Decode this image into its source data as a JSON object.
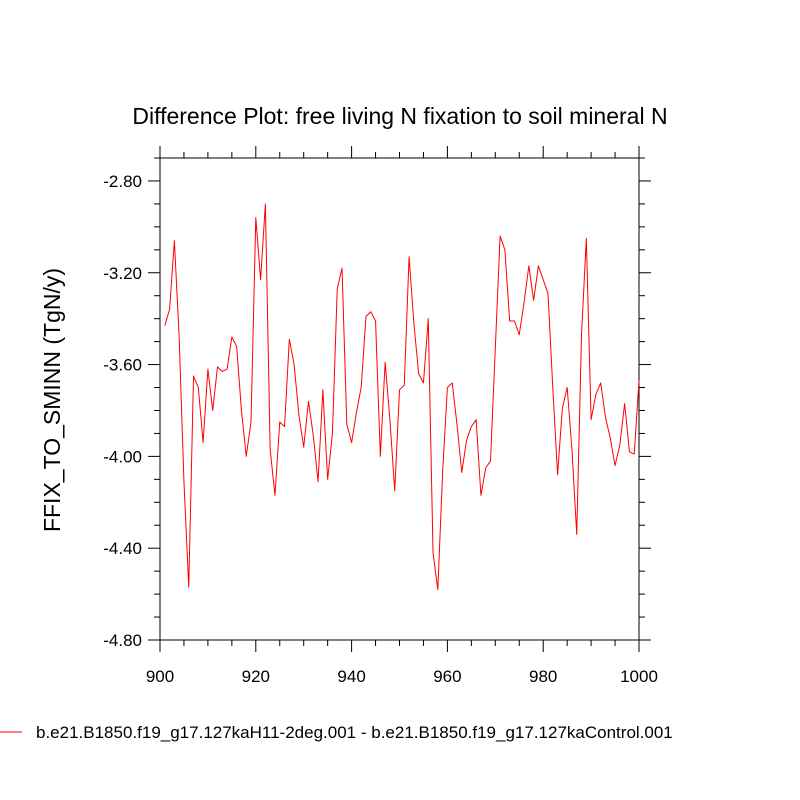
{
  "chart_data": {
    "type": "line",
    "title": "Difference Plot: free living N fixation to soil mineral N",
    "xlabel": "",
    "ylabel": "FFIX_TO_SMINN  (TgN/y)",
    "xlim": [
      900,
      1000
    ],
    "ylim": [
      -4.8,
      -2.7
    ],
    "x_ticks": [
      900,
      920,
      940,
      960,
      980,
      1000
    ],
    "x_tick_labels": [
      "900",
      "920",
      "940",
      "960",
      "980",
      "1000"
    ],
    "y_ticks": [
      -2.8,
      -3.2,
      -3.6,
      -4.0,
      -4.4,
      -4.8
    ],
    "y_tick_labels": [
      "-2.80",
      "-3.20",
      "-3.60",
      "-4.00",
      "-4.40",
      "-4.80"
    ],
    "grid": false,
    "series": [
      {
        "name": "b.e21.B1850.f19_g17.127kaH11-2deg.001 - b.e21.B1850.f19_g17.127kaControl.001",
        "color": "#ff0000",
        "x": [
          901,
          902,
          903,
          904,
          905,
          906,
          907,
          908,
          909,
          910,
          911,
          912,
          913,
          914,
          915,
          916,
          917,
          918,
          919,
          920,
          921,
          922,
          923,
          924,
          925,
          926,
          927,
          928,
          929,
          930,
          931,
          932,
          933,
          934,
          935,
          936,
          937,
          938,
          939,
          940,
          941,
          942,
          943,
          944,
          945,
          946,
          947,
          948,
          949,
          950,
          951,
          952,
          953,
          954,
          955,
          956,
          957,
          958,
          959,
          960,
          961,
          962,
          963,
          964,
          965,
          966,
          967,
          968,
          969,
          970,
          971,
          972,
          973,
          974,
          975,
          976,
          977,
          978,
          979,
          980,
          981,
          982,
          983,
          984,
          985,
          986,
          987,
          988,
          989,
          990,
          991,
          992,
          993,
          994,
          995,
          996,
          997,
          998,
          999,
          1000
        ],
        "values": [
          -3.43,
          -3.36,
          -3.06,
          -3.48,
          -4.11,
          -4.57,
          -3.65,
          -3.7,
          -3.94,
          -3.62,
          -3.8,
          -3.61,
          -3.63,
          -3.62,
          -3.48,
          -3.52,
          -3.8,
          -4.0,
          -3.85,
          -2.96,
          -3.23,
          -2.9,
          -3.97,
          -4.17,
          -3.85,
          -3.87,
          -3.49,
          -3.6,
          -3.82,
          -3.96,
          -3.76,
          -3.91,
          -4.11,
          -3.71,
          -4.1,
          -3.9,
          -3.27,
          -3.18,
          -3.86,
          -3.94,
          -3.81,
          -3.7,
          -3.39,
          -3.37,
          -3.41,
          -4.0,
          -3.59,
          -3.84,
          -4.15,
          -3.71,
          -3.69,
          -3.13,
          -3.42,
          -3.64,
          -3.68,
          -3.4,
          -4.42,
          -4.58,
          -4.07,
          -3.7,
          -3.68,
          -3.86,
          -4.07,
          -3.93,
          -3.87,
          -3.84,
          -4.17,
          -4.05,
          -4.02,
          -3.53,
          -3.04,
          -3.1,
          -3.41,
          -3.41,
          -3.47,
          -3.33,
          -3.17,
          -3.32,
          -3.17,
          -3.23,
          -3.29,
          -3.7,
          -4.08,
          -3.79,
          -3.7,
          -3.97,
          -4.34,
          -3.47,
          -3.05,
          -3.84,
          -3.73,
          -3.68,
          -3.83,
          -3.92,
          -4.04,
          -3.95,
          -3.77,
          -3.98,
          -3.99,
          -3.67
        ]
      }
    ],
    "legend": {
      "position": "bottom-left"
    }
  }
}
